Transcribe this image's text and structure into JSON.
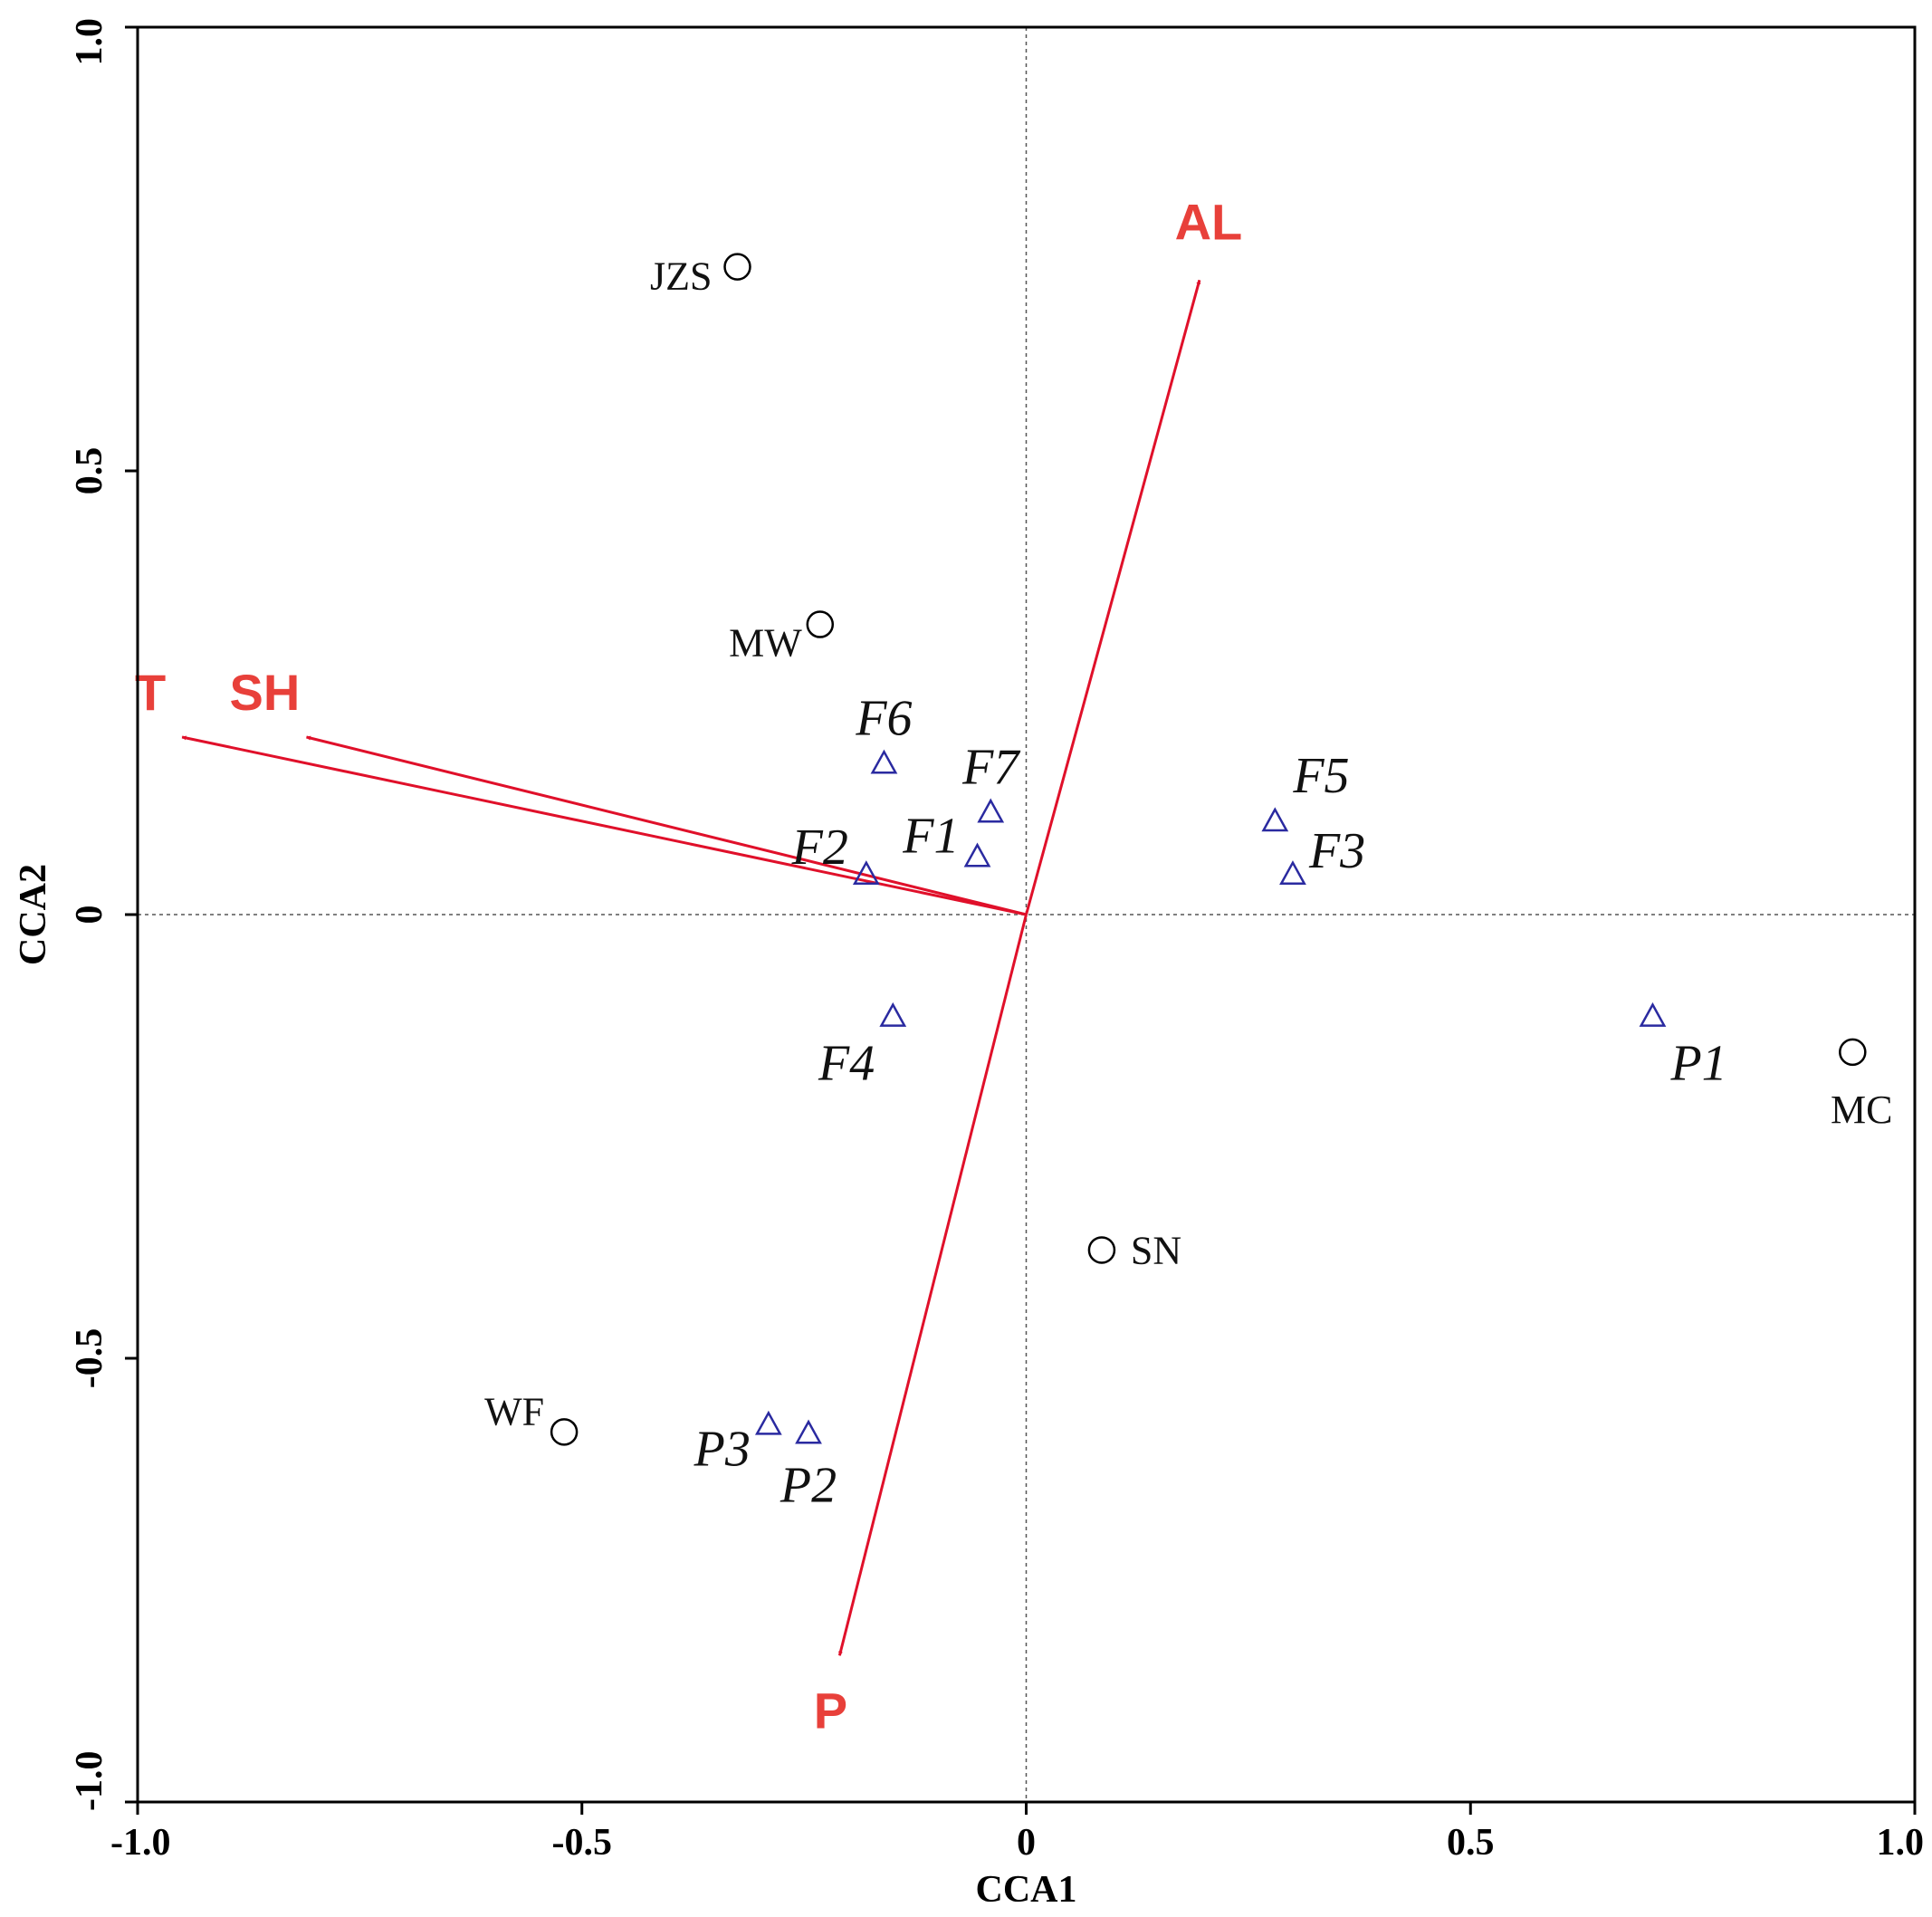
{
  "chart_data": {
    "type": "scatter",
    "title": "",
    "xlabel": "CCA1",
    "ylabel": "CCA2",
    "xlim": [
      -1.0,
      1.0
    ],
    "ylim": [
      -1.0,
      1.0
    ],
    "grid": false,
    "x_ticks": [
      {
        "value": -1.0,
        "label": "-1.0"
      },
      {
        "value": -0.5,
        "label": "-0.5"
      },
      {
        "value": 0,
        "label": "0"
      },
      {
        "value": 0.5,
        "label": "0.5"
      },
      {
        "value": 1.0,
        "label": "1.0"
      }
    ],
    "y_ticks": [
      {
        "value": -1.0,
        "label": "-1.0"
      },
      {
        "value": -0.5,
        "label": "-0.5"
      },
      {
        "value": 0,
        "label": "0"
      },
      {
        "value": 0.5,
        "label": "0.5"
      },
      {
        "value": 1.0,
        "label": "1.0"
      }
    ],
    "sites": [
      {
        "label": "JZS",
        "x": -0.325,
        "y": 0.73
      },
      {
        "label": "MW",
        "x": -0.232,
        "y": 0.327
      },
      {
        "label": "MC",
        "x": 0.93,
        "y": -0.155
      },
      {
        "label": "SN",
        "x": 0.085,
        "y": -0.378
      },
      {
        "label": "WF",
        "x": -0.52,
        "y": -0.583
      }
    ],
    "species": [
      {
        "label": "F6",
        "x": -0.16,
        "y": 0.17
      },
      {
        "label": "F7",
        "x": -0.04,
        "y": 0.115
      },
      {
        "label": "F1",
        "x": -0.055,
        "y": 0.065
      },
      {
        "label": "F2",
        "x": -0.18,
        "y": 0.045
      },
      {
        "label": "F5",
        "x": 0.28,
        "y": 0.105
      },
      {
        "label": "F3",
        "x": 0.3,
        "y": 0.045
      },
      {
        "label": "F4",
        "x": -0.15,
        "y": -0.115
      },
      {
        "label": "P1",
        "x": 0.705,
        "y": -0.115
      },
      {
        "label": "P3",
        "x": -0.29,
        "y": -0.575
      },
      {
        "label": "P2",
        "x": -0.245,
        "y": -0.585
      }
    ],
    "env_vectors": [
      {
        "label": "T",
        "x": -0.95,
        "y": 0.2
      },
      {
        "label": "SH",
        "x": -0.81,
        "y": 0.2
      },
      {
        "label": "AL",
        "x": 0.195,
        "y": 0.715
      },
      {
        "label": "P",
        "x": -0.21,
        "y": -0.835
      }
    ],
    "colors": {
      "site_marker": "#000000",
      "species_marker": "#2a2aa0",
      "vector": "#e0102a",
      "vector_label": "#e8403a",
      "reference_line": "#555555"
    }
  }
}
